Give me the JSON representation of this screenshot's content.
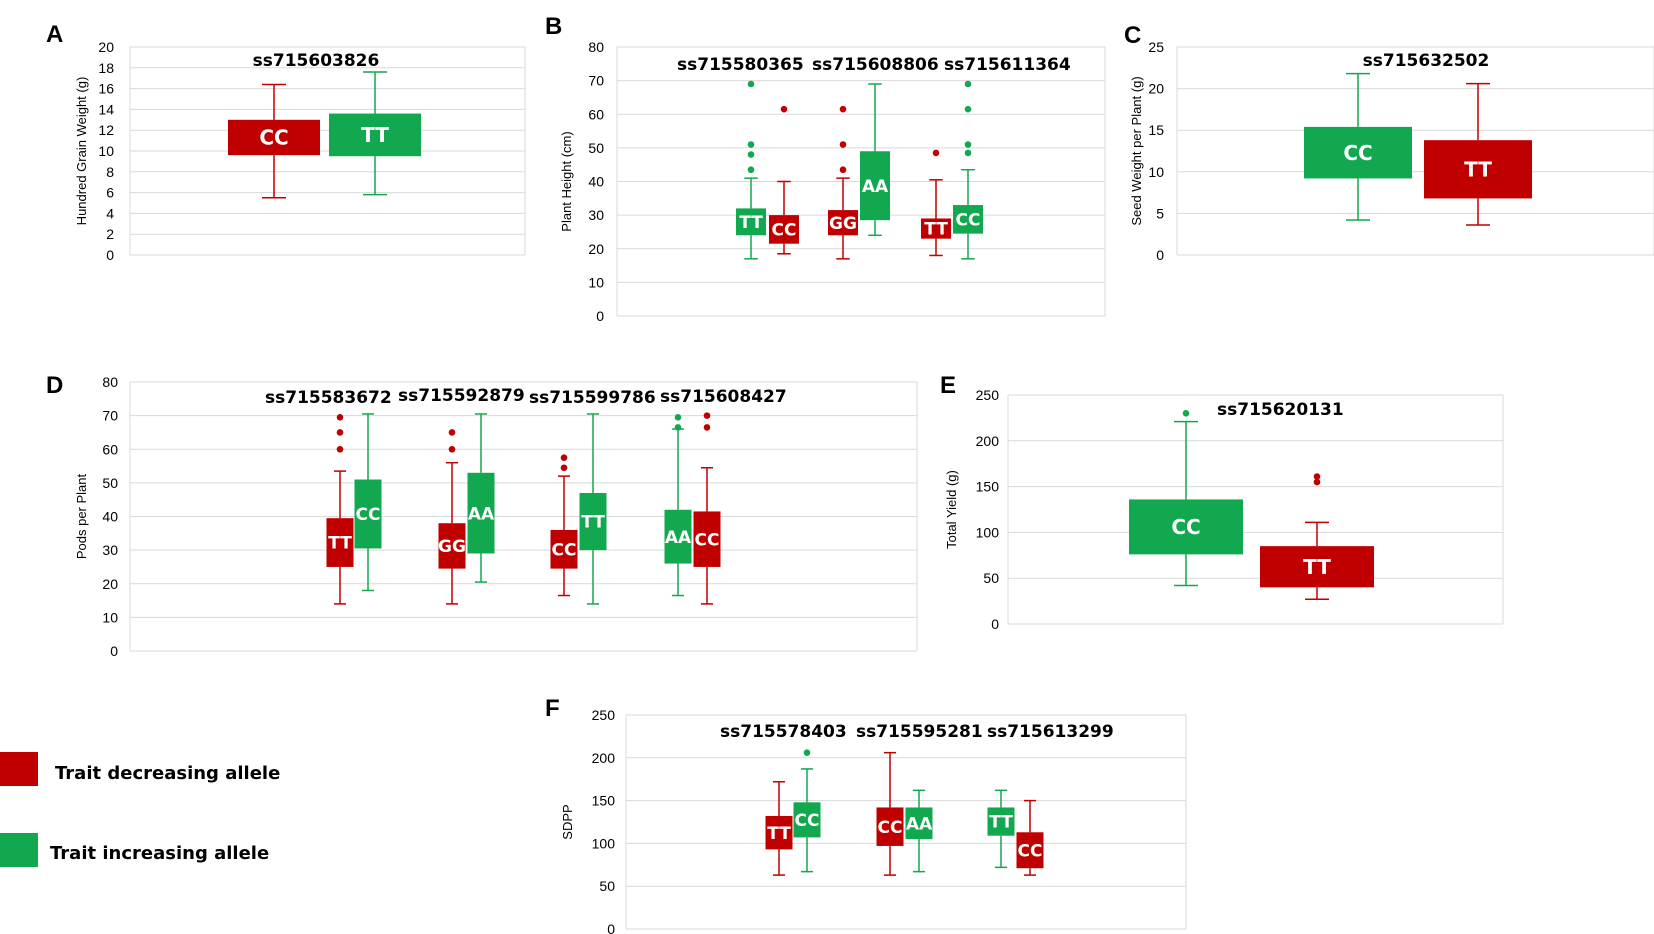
{
  "colors": {
    "decreasing": "#c00000",
    "increasing": "#12a84f"
  },
  "legend": [
    {
      "label": "Trait decreasing allele",
      "role": "decreasing"
    },
    {
      "label": "Trait increasing allele",
      "role": "increasing"
    }
  ],
  "chart_data": [
    {
      "panel": "A",
      "type": "boxplot",
      "ylabel": "Hundred Grain Weight (g)",
      "ylim": [
        0,
        20
      ],
      "yticks": [
        0,
        2,
        4,
        6,
        8,
        10,
        12,
        14,
        16,
        18,
        20
      ],
      "groups": [
        {
          "snp": "ss715603826",
          "boxes": [
            {
              "genotype": "CC",
              "role": "decreasing",
              "min": 5.5,
              "q1": 9.6,
              "q3": 13,
              "max": 16.4,
              "outliers": []
            },
            {
              "genotype": "TT",
              "role": "increasing",
              "min": 5.8,
              "q1": 9.5,
              "q3": 13.6,
              "max": 17.6,
              "outliers": []
            }
          ]
        }
      ]
    },
    {
      "panel": "B",
      "type": "boxplot",
      "ylabel": "Plant Height (cm)",
      "ylim": [
        0,
        80
      ],
      "yticks": [
        0,
        10,
        20,
        30,
        40,
        50,
        60,
        70,
        80
      ],
      "groups": [
        {
          "snp": "ss715580365",
          "boxes": [
            {
              "genotype": "TT",
              "role": "increasing",
              "min": 17,
              "q1": 24,
              "q3": 32,
              "max": 41,
              "outliers": [
                43.5,
                48,
                51,
                69
              ]
            },
            {
              "genotype": "CC",
              "role": "decreasing",
              "min": 18.5,
              "q1": 21.5,
              "q3": 30,
              "max": 40,
              "outliers": [
                61.5
              ]
            }
          ]
        },
        {
          "snp": "ss715608806",
          "boxes": [
            {
              "genotype": "GG",
              "role": "decreasing",
              "min": 17,
              "q1": 24,
              "q3": 31.5,
              "max": 41,
              "outliers": [
                43.5,
                51,
                61.5
              ]
            },
            {
              "genotype": "AA",
              "role": "increasing",
              "min": 24,
              "q1": 28.5,
              "q3": 49,
              "max": 69,
              "outliers": []
            }
          ]
        },
        {
          "snp": "ss715611364",
          "boxes": [
            {
              "genotype": "TT",
              "role": "decreasing",
              "min": 18,
              "q1": 23,
              "q3": 29,
              "max": 40.5,
              "outliers": [
                48.5
              ]
            },
            {
              "genotype": "CC",
              "role": "increasing",
              "min": 17,
              "q1": 24.5,
              "q3": 33,
              "max": 43.5,
              "outliers": [
                48.5,
                51,
                61.5,
                69
              ]
            }
          ]
        }
      ]
    },
    {
      "panel": "C",
      "type": "boxplot",
      "ylabel": "Seed Weight per Plant (g)",
      "ylim": [
        0,
        25
      ],
      "yticks": [
        0,
        5,
        10,
        15,
        20,
        25
      ],
      "groups": [
        {
          "snp": "ss715632502",
          "boxes": [
            {
              "genotype": "CC",
              "role": "increasing",
              "min": 4.2,
              "q1": 9.2,
              "q3": 15.4,
              "max": 21.8,
              "outliers": []
            },
            {
              "genotype": "TT",
              "role": "decreasing",
              "min": 3.6,
              "q1": 6.8,
              "q3": 13.8,
              "max": 20.6,
              "outliers": []
            }
          ]
        }
      ]
    },
    {
      "panel": "D",
      "type": "boxplot",
      "ylabel": "Pods per Plant",
      "ylim": [
        0,
        80
      ],
      "yticks": [
        0,
        10,
        20,
        30,
        40,
        50,
        60,
        70,
        80
      ],
      "groups": [
        {
          "snp": "ss715583672",
          "boxes": [
            {
              "genotype": "TT",
              "role": "decreasing",
              "min": 14,
              "q1": 25,
              "q3": 39.5,
              "max": 53.5,
              "outliers": [
                60,
                65,
                69.5
              ]
            },
            {
              "genotype": "CC",
              "role": "increasing",
              "min": 18,
              "q1": 30.5,
              "q3": 51,
              "max": 70.5,
              "outliers": []
            }
          ]
        },
        {
          "snp": "ss715592879",
          "boxes": [
            {
              "genotype": "GG",
              "role": "decreasing",
              "min": 14,
              "q1": 24.5,
              "q3": 38,
              "max": 56,
              "outliers": [
                60,
                65
              ]
            },
            {
              "genotype": "AA",
              "role": "increasing",
              "min": 20.5,
              "q1": 29,
              "q3": 53,
              "max": 70.5,
              "outliers": []
            }
          ]
        },
        {
          "snp": "ss715599786",
          "boxes": [
            {
              "genotype": "CC",
              "role": "decreasing",
              "min": 16.5,
              "q1": 24.5,
              "q3": 36,
              "max": 52,
              "outliers": [
                54.5,
                57.5
              ]
            },
            {
              "genotype": "TT",
              "role": "increasing",
              "min": 14,
              "q1": 30,
              "q3": 47,
              "max": 70.5,
              "outliers": []
            }
          ]
        },
        {
          "snp": "ss715608427",
          "boxes": [
            {
              "genotype": "AA",
              "role": "increasing",
              "min": 16.5,
              "q1": 26,
              "q3": 42,
              "max": 66,
              "outliers": [
                66.5,
                69.5
              ]
            },
            {
              "genotype": "CC",
              "role": "decreasing",
              "min": 14,
              "q1": 25,
              "q3": 41.5,
              "max": 54.5,
              "outliers": [
                66.5,
                70
              ]
            }
          ]
        }
      ]
    },
    {
      "panel": "E",
      "type": "boxplot",
      "ylabel": "Total Yield (g)",
      "ylim": [
        0,
        250
      ],
      "yticks": [
        0,
        50,
        100,
        150,
        200,
        250
      ],
      "groups": [
        {
          "snp": "ss715620131",
          "boxes": [
            {
              "genotype": "CC",
              "role": "increasing",
              "min": 42,
              "q1": 76,
              "q3": 136,
              "max": 221,
              "outliers": [
                230
              ]
            },
            {
              "genotype": "TT",
              "role": "decreasing",
              "min": 27,
              "q1": 40,
              "q3": 85,
              "max": 111,
              "outliers": [
                155,
                161
              ]
            }
          ]
        }
      ]
    },
    {
      "panel": "F",
      "type": "boxplot",
      "ylabel": "SDPP",
      "ylim": [
        0,
        250
      ],
      "yticks": [
        0,
        50,
        100,
        150,
        200,
        250
      ],
      "groups": [
        {
          "snp": "ss715578403",
          "boxes": [
            {
              "genotype": "TT",
              "role": "decreasing",
              "min": 63,
              "q1": 93,
              "q3": 132,
              "max": 172,
              "outliers": []
            },
            {
              "genotype": "CC",
              "role": "increasing",
              "min": 67,
              "q1": 107,
              "q3": 148,
              "max": 187,
              "outliers": [
                206
              ]
            }
          ]
        },
        {
          "snp": "ss715595281",
          "boxes": [
            {
              "genotype": "CC",
              "role": "decreasing",
              "min": 63,
              "q1": 97,
              "q3": 142,
              "max": 206,
              "outliers": []
            },
            {
              "genotype": "AA",
              "role": "increasing",
              "min": 67,
              "q1": 105,
              "q3": 142,
              "max": 162,
              "outliers": []
            }
          ]
        },
        {
          "snp": "ss715613299",
          "boxes": [
            {
              "genotype": "TT",
              "role": "increasing",
              "min": 72,
              "q1": 109,
              "q3": 142,
              "max": 162,
              "outliers": []
            },
            {
              "genotype": "CC",
              "role": "decreasing",
              "min": 63,
              "q1": 71,
              "q3": 113,
              "max": 150,
              "outliers": []
            }
          ]
        }
      ]
    }
  ]
}
